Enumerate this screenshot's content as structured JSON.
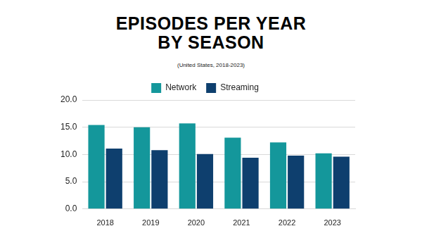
{
  "chart_data": {
    "type": "bar",
    "title": "EPISODES PER YEAR BY SEASON",
    "subtitle": "(United States, 2018-2023)",
    "categories": [
      "2018",
      "2019",
      "2020",
      "2021",
      "2022",
      "2023"
    ],
    "series": [
      {
        "name": "Network",
        "color": "#14979b",
        "values": [
          15.4,
          15.0,
          15.7,
          13.1,
          12.2,
          10.2
        ]
      },
      {
        "name": "Streaming",
        "color": "#0e3f6e",
        "values": [
          11.1,
          10.8,
          10.1,
          9.4,
          9.8,
          9.6
        ]
      }
    ],
    "ylim": [
      0,
      20
    ],
    "yticks": [
      {
        "value": 0,
        "label": "0.0"
      },
      {
        "value": 5,
        "label": "5.0"
      },
      {
        "value": 10,
        "label": "10.0"
      },
      {
        "value": 15,
        "label": "15.0"
      },
      {
        "value": 20,
        "label": "20.0"
      }
    ],
    "grid": true,
    "legend": "top"
  }
}
